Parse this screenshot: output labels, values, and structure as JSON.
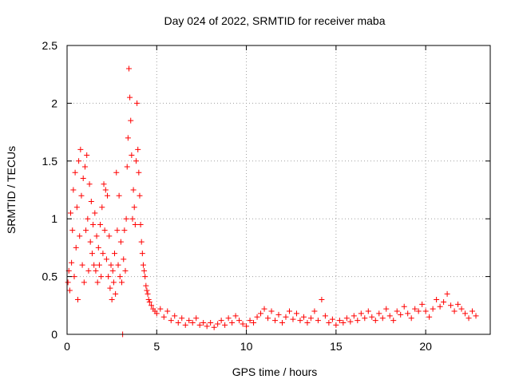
{
  "chart_data": {
    "type": "scatter",
    "title": "Day 024 of 2022, SRMTID for receiver maba",
    "xlabel": "GPS time / hours",
    "ylabel": "SRMTID / TECUs",
    "xlim": [
      0,
      23.6
    ],
    "ylim": [
      0,
      2.5
    ],
    "x_ticks": [
      0,
      5,
      10,
      15,
      20
    ],
    "x_tick_labels": [
      "0",
      "5",
      "10",
      "15",
      "20"
    ],
    "y_ticks": [
      0,
      0.5,
      1,
      1.5,
      2,
      2.5
    ],
    "y_tick_labels": [
      "0",
      "0.5",
      "1",
      "1.5",
      "2",
      "2.5"
    ],
    "grid": true,
    "marker": "+",
    "series": [
      {
        "name": "SRMTID",
        "color": "#ff0000",
        "points": [
          [
            0.05,
            0.45
          ],
          [
            0.1,
            0.55
          ],
          [
            0.15,
            0.38
          ],
          [
            0.2,
            1.05
          ],
          [
            0.25,
            0.62
          ],
          [
            0.3,
            0.9
          ],
          [
            0.35,
            1.25
          ],
          [
            0.4,
            0.5
          ],
          [
            0.45,
            1.4
          ],
          [
            0.5,
            0.75
          ],
          [
            0.55,
            1.1
          ],
          [
            0.6,
            0.3
          ],
          [
            0.65,
            1.5
          ],
          [
            0.7,
            0.85
          ],
          [
            0.75,
            1.6
          ],
          [
            0.8,
            1.2
          ],
          [
            0.85,
            0.6
          ],
          [
            0.9,
            1.35
          ],
          [
            0.95,
            0.45
          ],
          [
            1.0,
            1.45
          ],
          [
            1.05,
            0.9
          ],
          [
            1.1,
            1.55
          ],
          [
            1.15,
            1.0
          ],
          [
            1.2,
            0.55
          ],
          [
            1.25,
            1.3
          ],
          [
            1.3,
            0.8
          ],
          [
            1.35,
            1.15
          ],
          [
            1.4,
            0.7
          ],
          [
            1.45,
            0.95
          ],
          [
            1.5,
            0.6
          ],
          [
            1.55,
            1.05
          ],
          [
            1.6,
            0.55
          ],
          [
            1.65,
            0.85
          ],
          [
            1.7,
            0.45
          ],
          [
            1.75,
            0.75
          ],
          [
            1.8,
            0.6
          ],
          [
            1.85,
            0.95
          ],
          [
            1.9,
            0.5
          ],
          [
            1.95,
            1.1
          ],
          [
            2.0,
            0.7
          ],
          [
            2.05,
            1.3
          ],
          [
            2.1,
            0.9
          ],
          [
            2.15,
            1.25
          ],
          [
            2.2,
            0.65
          ],
          [
            2.25,
            1.2
          ],
          [
            2.3,
            0.5
          ],
          [
            2.35,
            0.85
          ],
          [
            2.4,
            0.4
          ],
          [
            2.45,
            0.6
          ],
          [
            2.5,
            0.3
          ],
          [
            2.55,
            0.55
          ],
          [
            2.6,
            0.45
          ],
          [
            2.65,
            0.7
          ],
          [
            2.7,
            0.35
          ],
          [
            2.75,
            1.4
          ],
          [
            2.8,
            0.9
          ],
          [
            2.85,
            0.6
          ],
          [
            2.9,
            1.2
          ],
          [
            2.95,
            0.5
          ],
          [
            3.0,
            0.8
          ],
          [
            3.05,
            0.45
          ],
          [
            3.1,
            0.0
          ],
          [
            3.15,
            0.65
          ],
          [
            3.2,
            0.9
          ],
          [
            3.25,
            0.55
          ],
          [
            3.3,
            1.0
          ],
          [
            3.35,
            1.45
          ],
          [
            3.4,
            1.7
          ],
          [
            3.45,
            2.3
          ],
          [
            3.5,
            2.05
          ],
          [
            3.55,
            1.85
          ],
          [
            3.6,
            1.55
          ],
          [
            3.65,
            1.0
          ],
          [
            3.7,
            1.25
          ],
          [
            3.75,
            1.1
          ],
          [
            3.8,
            0.95
          ],
          [
            3.85,
            1.5
          ],
          [
            3.9,
            2.0
          ],
          [
            3.95,
            1.6
          ],
          [
            4.0,
            1.4
          ],
          [
            4.05,
            1.2
          ],
          [
            4.1,
            0.95
          ],
          [
            4.15,
            0.8
          ],
          [
            4.2,
            0.7
          ],
          [
            4.25,
            0.6
          ],
          [
            4.3,
            0.55
          ],
          [
            4.35,
            0.5
          ],
          [
            4.4,
            0.42
          ],
          [
            4.45,
            0.38
          ],
          [
            4.5,
            0.35
          ],
          [
            4.55,
            0.3
          ],
          [
            4.6,
            0.28
          ],
          [
            4.7,
            0.25
          ],
          [
            4.8,
            0.22
          ],
          [
            4.9,
            0.2
          ],
          [
            5.0,
            0.18
          ],
          [
            5.2,
            0.22
          ],
          [
            5.4,
            0.15
          ],
          [
            5.6,
            0.2
          ],
          [
            5.8,
            0.12
          ],
          [
            6.0,
            0.16
          ],
          [
            6.2,
            0.1
          ],
          [
            6.4,
            0.14
          ],
          [
            6.6,
            0.08
          ],
          [
            6.8,
            0.12
          ],
          [
            7.0,
            0.1
          ],
          [
            7.2,
            0.14
          ],
          [
            7.4,
            0.08
          ],
          [
            7.6,
            0.1
          ],
          [
            7.8,
            0.07
          ],
          [
            8.0,
            0.1
          ],
          [
            8.2,
            0.06
          ],
          [
            8.4,
            0.09
          ],
          [
            8.6,
            0.12
          ],
          [
            8.8,
            0.08
          ],
          [
            9.0,
            0.14
          ],
          [
            9.2,
            0.1
          ],
          [
            9.4,
            0.16
          ],
          [
            9.6,
            0.12
          ],
          [
            9.8,
            0.09
          ],
          [
            10.0,
            0.07
          ],
          [
            10.2,
            0.12
          ],
          [
            10.4,
            0.1
          ],
          [
            10.6,
            0.15
          ],
          [
            10.8,
            0.18
          ],
          [
            11.0,
            0.22
          ],
          [
            11.2,
            0.14
          ],
          [
            11.4,
            0.2
          ],
          [
            11.6,
            0.12
          ],
          [
            11.8,
            0.17
          ],
          [
            12.0,
            0.1
          ],
          [
            12.2,
            0.15
          ],
          [
            12.4,
            0.2
          ],
          [
            12.6,
            0.13
          ],
          [
            12.8,
            0.18
          ],
          [
            13.0,
            0.12
          ],
          [
            13.2,
            0.15
          ],
          [
            13.4,
            0.1
          ],
          [
            13.6,
            0.14
          ],
          [
            13.8,
            0.2
          ],
          [
            14.0,
            0.12
          ],
          [
            14.2,
            0.3
          ],
          [
            14.4,
            0.16
          ],
          [
            14.6,
            0.1
          ],
          [
            14.8,
            0.13
          ],
          [
            15.0,
            0.08
          ],
          [
            15.2,
            0.12
          ],
          [
            15.4,
            0.1
          ],
          [
            15.6,
            0.14
          ],
          [
            15.8,
            0.11
          ],
          [
            16.0,
            0.16
          ],
          [
            16.2,
            0.12
          ],
          [
            16.4,
            0.18
          ],
          [
            16.6,
            0.14
          ],
          [
            16.8,
            0.2
          ],
          [
            17.0,
            0.15
          ],
          [
            17.2,
            0.12
          ],
          [
            17.4,
            0.18
          ],
          [
            17.6,
            0.14
          ],
          [
            17.8,
            0.22
          ],
          [
            18.0,
            0.16
          ],
          [
            18.2,
            0.12
          ],
          [
            18.4,
            0.2
          ],
          [
            18.6,
            0.17
          ],
          [
            18.8,
            0.24
          ],
          [
            19.0,
            0.18
          ],
          [
            19.2,
            0.14
          ],
          [
            19.4,
            0.22
          ],
          [
            19.6,
            0.2
          ],
          [
            19.8,
            0.26
          ],
          [
            20.0,
            0.2
          ],
          [
            20.2,
            0.15
          ],
          [
            20.4,
            0.22
          ],
          [
            20.6,
            0.3
          ],
          [
            20.8,
            0.24
          ],
          [
            21.0,
            0.28
          ],
          [
            21.2,
            0.35
          ],
          [
            21.4,
            0.25
          ],
          [
            21.6,
            0.2
          ],
          [
            21.8,
            0.26
          ],
          [
            22.0,
            0.22
          ],
          [
            22.2,
            0.18
          ],
          [
            22.4,
            0.14
          ],
          [
            22.6,
            0.2
          ],
          [
            22.8,
            0.16
          ]
        ]
      }
    ]
  }
}
